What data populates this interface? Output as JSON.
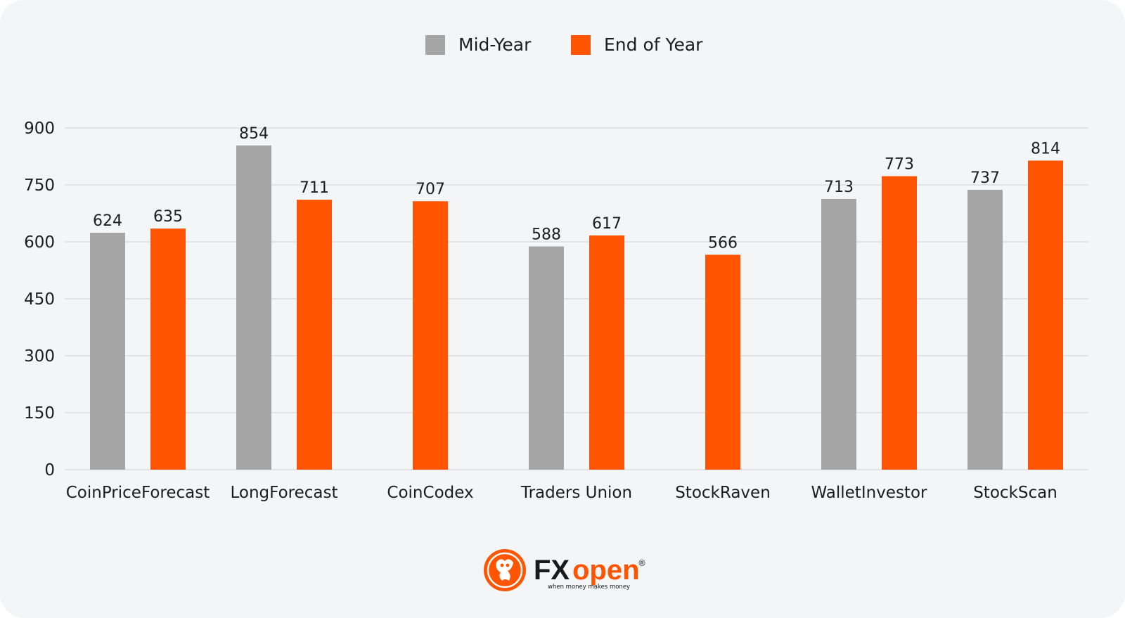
{
  "chart_data": {
    "type": "bar",
    "title": "",
    "xlabel": "",
    "ylabel": "",
    "ylim": [
      0,
      900
    ],
    "yticks": [
      0,
      150,
      300,
      450,
      600,
      750,
      900
    ],
    "grid": true,
    "legend_position": "top-center",
    "categories": [
      "CoinPriceForecast",
      "LongForecast",
      "CoinCodex",
      "Traders Union",
      "StockRaven",
      "WalletInvestor",
      "StockScan"
    ],
    "series": [
      {
        "name": "Mid-Year",
        "color": "#a5a5a5",
        "values": [
          624,
          854,
          null,
          588,
          null,
          713,
          737
        ]
      },
      {
        "name": "End of Year",
        "color": "#ff5500",
        "values": [
          635,
          711,
          707,
          617,
          566,
          773,
          814
        ]
      }
    ]
  },
  "colors": {
    "background": "#f4f5f7",
    "grid": "#dcdde1",
    "brand": "#ff5500"
  },
  "brand": {
    "logo_icon": "bull-dragon-logo-icon",
    "name_part1": "FX",
    "name_part2": "open",
    "registered": "®",
    "tagline": "when money makes money"
  }
}
